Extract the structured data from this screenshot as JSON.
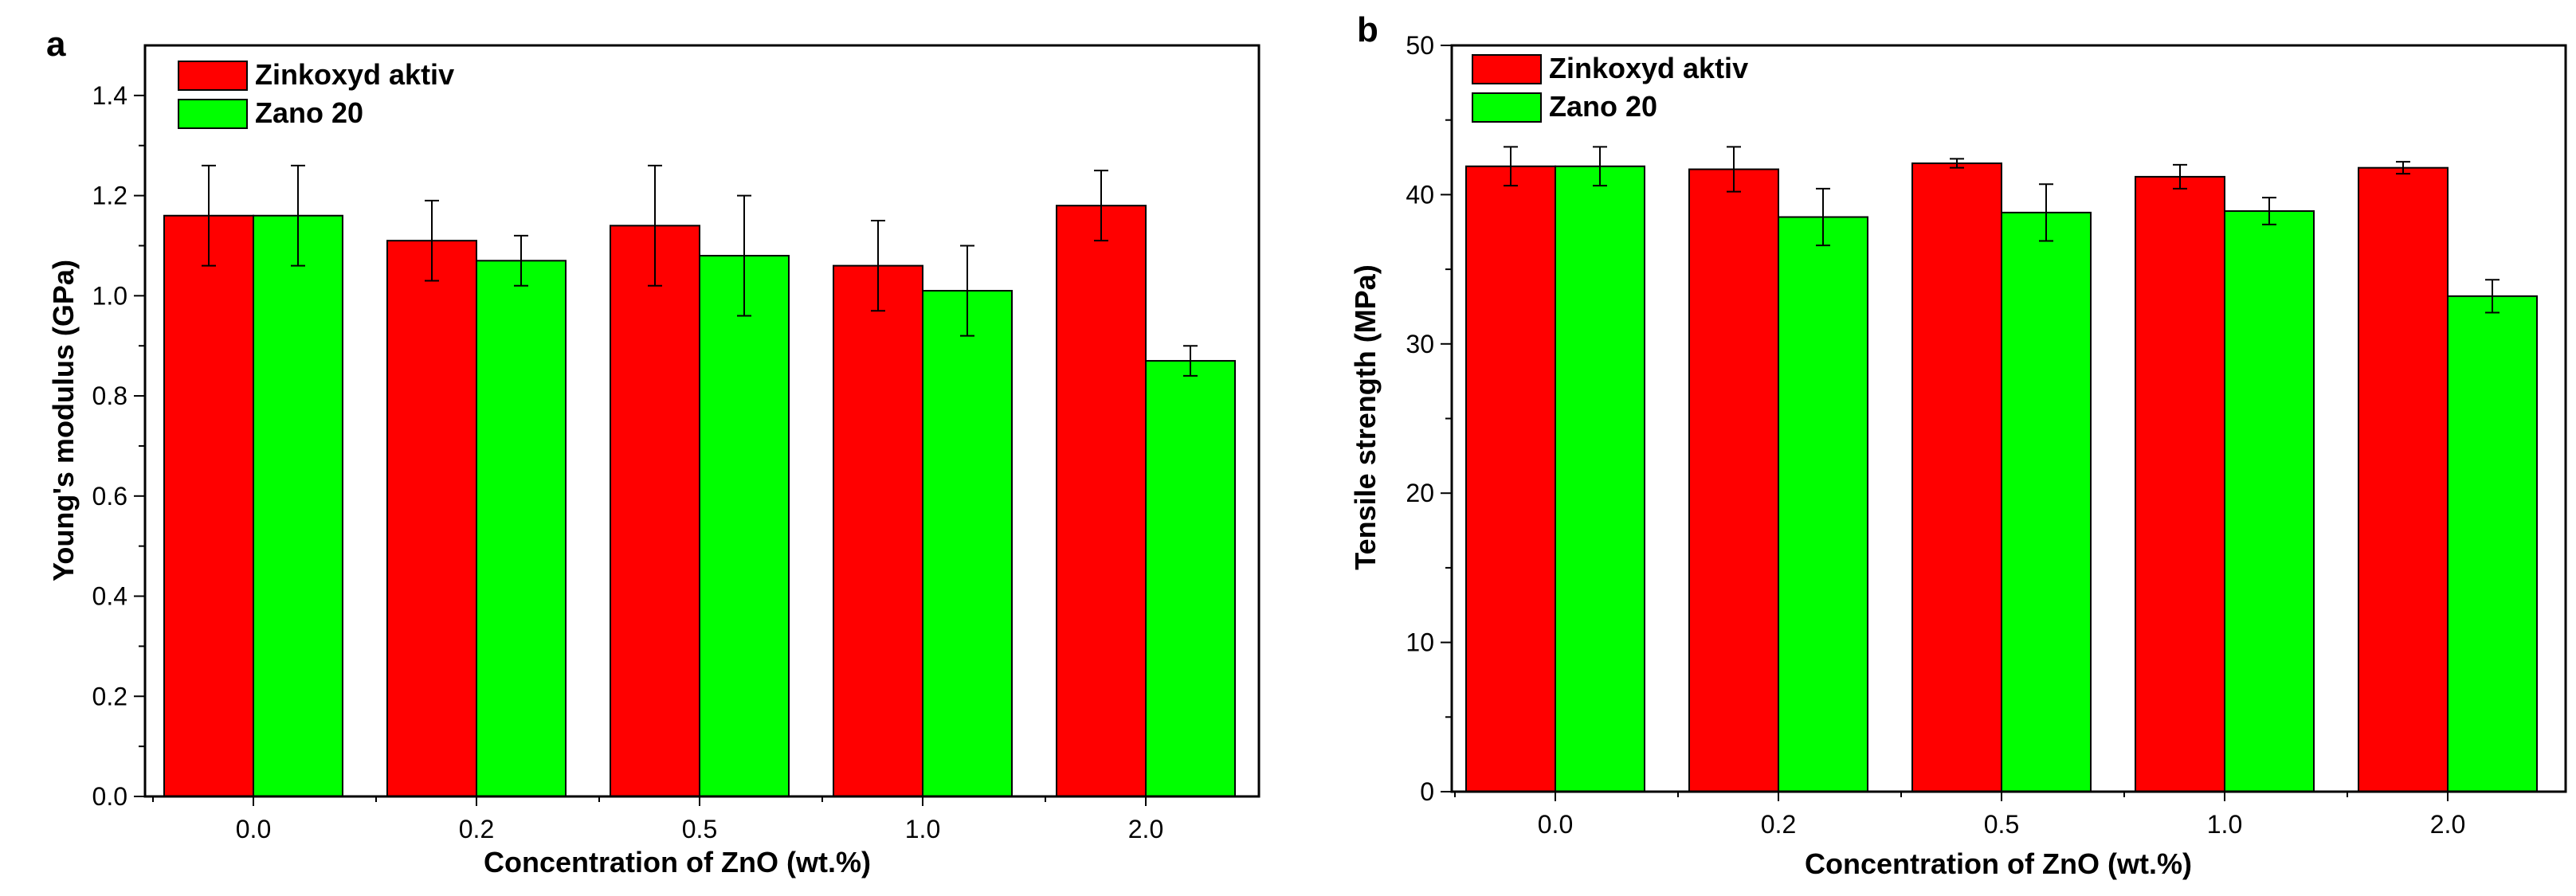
{
  "chart_data": [
    {
      "type": "bar",
      "panel_label": "a",
      "categories": [
        "0.0",
        "0.2",
        "0.5",
        "1.0",
        "2.0"
      ],
      "series": [
        {
          "name": "Zinkoxyd aktiv",
          "color": "#ff0000",
          "values": [
            1.16,
            1.11,
            1.14,
            1.06,
            1.18
          ],
          "errors": [
            0.1,
            0.08,
            0.12,
            0.09,
            0.07
          ]
        },
        {
          "name": "Zano 20",
          "color": "#00ff00",
          "values": [
            1.16,
            1.07,
            1.08,
            1.01,
            0.87
          ],
          "errors": [
            0.1,
            0.05,
            0.12,
            0.09,
            0.03
          ]
        }
      ],
      "xlabel": "Concentration of ZnO (wt.%)",
      "ylabel": "Young's modulus (GPa)",
      "ylim": [
        0,
        1.5
      ],
      "yticks": [
        "0.0",
        "0.2",
        "0.4",
        "0.6",
        "0.8",
        "1.0",
        "1.2",
        "1.4"
      ],
      "legend_position": "top-left"
    },
    {
      "type": "bar",
      "panel_label": "b",
      "categories": [
        "0.0",
        "0.2",
        "0.5",
        "1.0",
        "2.0"
      ],
      "series": [
        {
          "name": "Zinkoxyd aktiv",
          "color": "#ff0000",
          "values": [
            41.9,
            41.7,
            42.1,
            41.2,
            41.8
          ],
          "errors": [
            1.3,
            1.5,
            0.3,
            0.8,
            0.4
          ]
        },
        {
          "name": "Zano 20",
          "color": "#00ff00",
          "values": [
            41.9,
            38.5,
            38.8,
            38.9,
            33.2
          ],
          "errors": [
            1.3,
            1.9,
            1.9,
            0.9,
            1.1
          ]
        }
      ],
      "xlabel": "Concentration of ZnO (wt.%)",
      "ylabel": "Tensile strength (MPa)",
      "ylim": [
        0,
        50
      ],
      "yticks": [
        "0",
        "10",
        "20",
        "30",
        "40",
        "50"
      ],
      "legend_position": "top-left"
    }
  ]
}
